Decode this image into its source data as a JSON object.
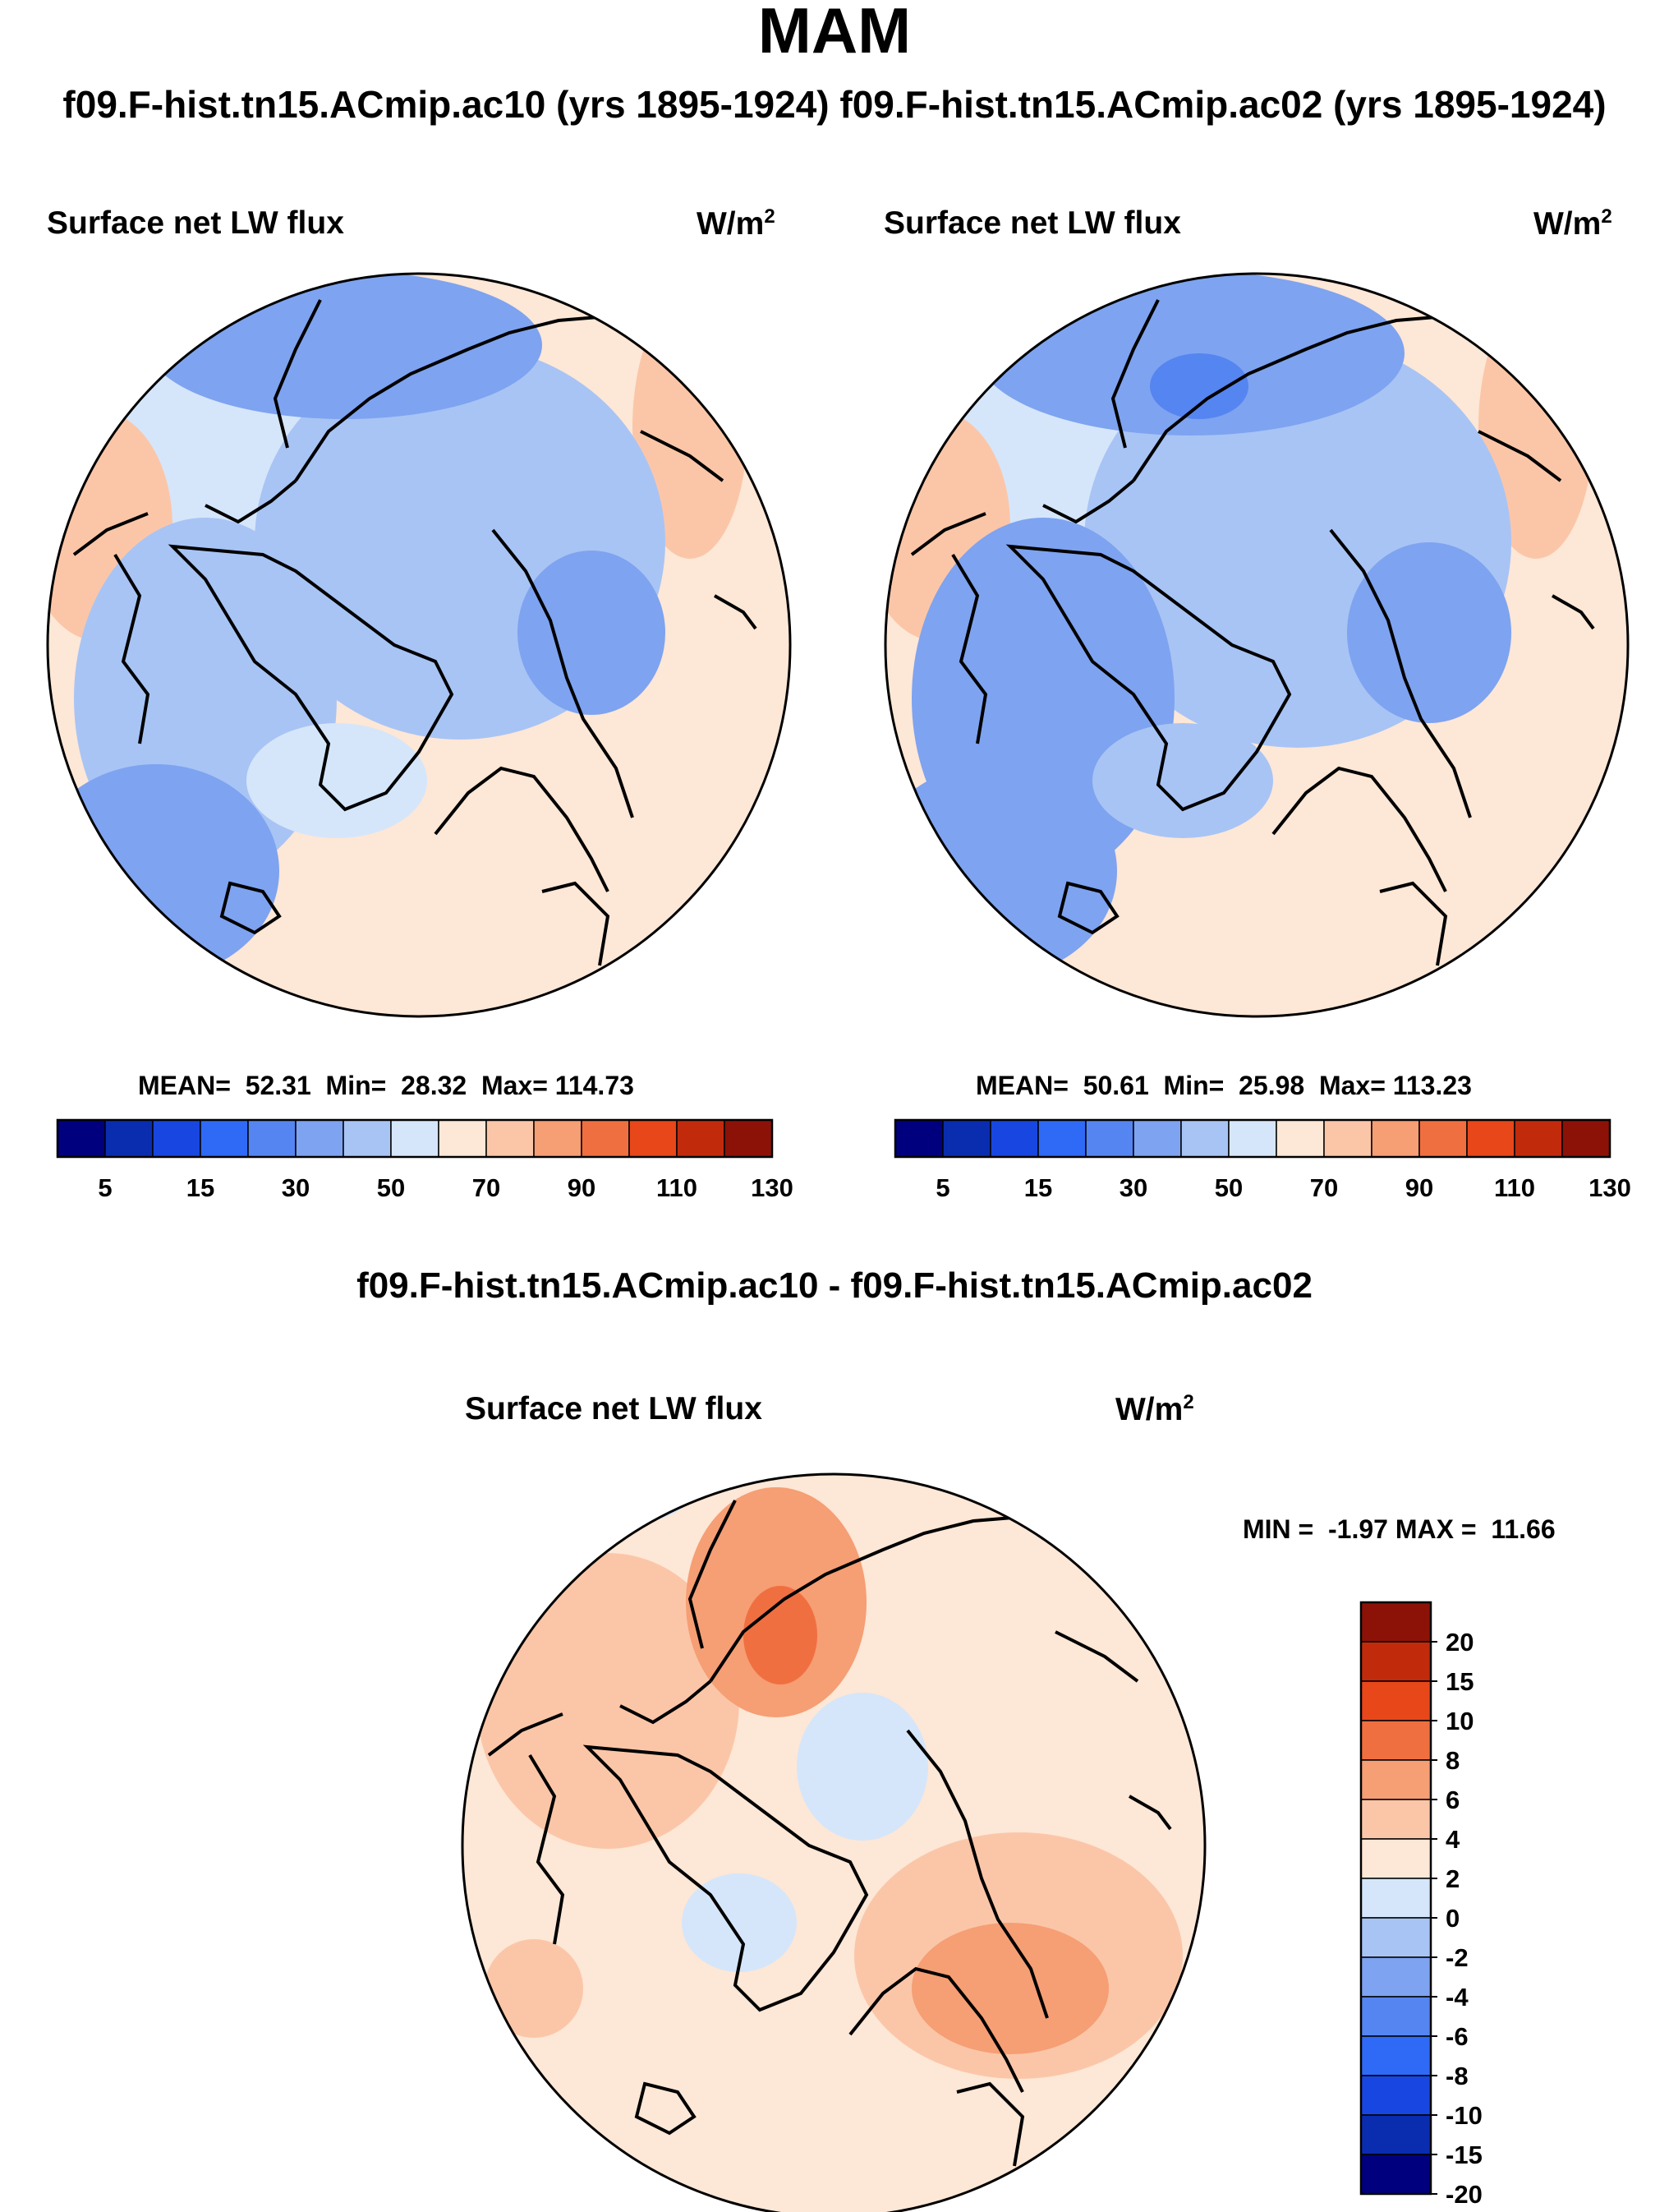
{
  "header": {
    "title": "MAM",
    "subtitle": "f09.F-hist.tn15.ACmip.ac10 (yrs 1895-1924)  f09.F-hist.tn15.ACmip.ac02 (yrs 1895-1924)"
  },
  "panels": [
    {
      "variable": "Surface net LW flux",
      "units_base": "W/m",
      "units_exp": "2",
      "stats": {
        "mean_label": "MEAN=",
        "mean": "52.31",
        "min_label": "Min=",
        "min": "28.32",
        "max_label": "Max=",
        "max": "114.73"
      }
    },
    {
      "variable": "Surface net LW flux",
      "units_base": "W/m",
      "units_exp": "2",
      "stats": {
        "mean_label": "MEAN=",
        "mean": "50.61",
        "min_label": "Min=",
        "min": "25.98",
        "max_label": "Max=",
        "max": "113.23"
      }
    }
  ],
  "absolute_colorbar": {
    "colors": [
      "#00007f",
      "#0a2db0",
      "#1846e0",
      "#2e6af5",
      "#5585f0",
      "#7ea3f0",
      "#a8c4f5",
      "#d5e6fa",
      "#fde7d6",
      "#fbc6a8",
      "#f69e74",
      "#f06f40",
      "#e8471a",
      "#c22a0c",
      "#8c1208"
    ],
    "tick_labels": [
      "5",
      "15",
      "30",
      "50",
      "70",
      "90",
      "110",
      "130"
    ]
  },
  "difference": {
    "title": "f09.F-hist.tn15.ACmip.ac10 - f09.F-hist.tn15.ACmip.ac02",
    "variable": "Surface net LW flux",
    "units_base": "W/m",
    "units_exp": "2",
    "stats": {
      "min_label": "MIN =",
      "min": "-1.97",
      "max_label": "MAX =",
      "max": "11.66"
    },
    "colorbar": {
      "colors_top_to_bottom": [
        "#8c1208",
        "#c22a0c",
        "#e8471a",
        "#f06f40",
        "#f69e74",
        "#fbc6a8",
        "#fde7d6",
        "#d5e6fa",
        "#a8c4f5",
        "#7ea3f0",
        "#5585f0",
        "#2e6af5",
        "#1846e0",
        "#0a2db0",
        "#00007f"
      ],
      "tick_labels": [
        "20",
        "15",
        "10",
        "8",
        "6",
        "4",
        "2",
        "0",
        "-2",
        "-4",
        "-6",
        "-8",
        "-10",
        "-15",
        "-20"
      ]
    }
  }
}
